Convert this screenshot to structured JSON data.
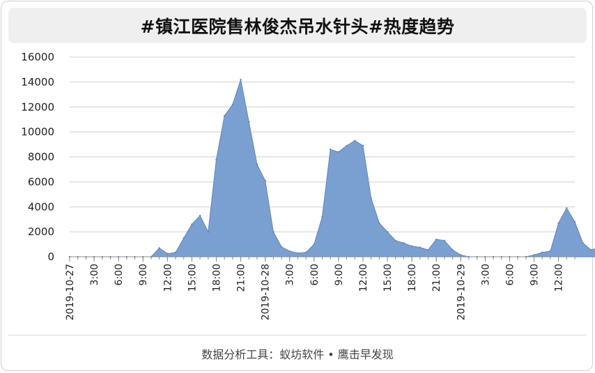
{
  "title": "#镇江医院售林俊杰吊水针头#热度趋势",
  "footer": "数据分析工具：蚁坊软件 • 鹰击早发现",
  "colors": {
    "fill": "#7aa0d2",
    "stroke": "#5f86c0",
    "grid": "#cfcfcf",
    "axis": "#888888",
    "background": "#ffffff",
    "title_bar": "#efefef"
  },
  "chart_data": {
    "type": "area",
    "title": "",
    "xlabel": "",
    "ylabel": "",
    "ylim": [
      0,
      16000
    ],
    "y_ticks": [
      0,
      2000,
      4000,
      6000,
      8000,
      10000,
      12000,
      14000,
      16000
    ],
    "grid": true,
    "legend": "none",
    "x_tick_labels": [
      {
        "hour": 0,
        "label": "2019-10-27"
      },
      {
        "hour": 3,
        "label": "3:00"
      },
      {
        "hour": 6,
        "label": "6:00"
      },
      {
        "hour": 9,
        "label": "9:00"
      },
      {
        "hour": 12,
        "label": "12:00"
      },
      {
        "hour": 15,
        "label": "15:00"
      },
      {
        "hour": 18,
        "label": "18:00"
      },
      {
        "hour": 21,
        "label": "21:00"
      },
      {
        "hour": 24,
        "label": "2019-10-28"
      },
      {
        "hour": 27,
        "label": "3:00"
      },
      {
        "hour": 30,
        "label": "6:00"
      },
      {
        "hour": 33,
        "label": "9:00"
      },
      {
        "hour": 36,
        "label": "12:00"
      },
      {
        "hour": 39,
        "label": "15:00"
      },
      {
        "hour": 42,
        "label": "18:00"
      },
      {
        "hour": 45,
        "label": "21:00"
      },
      {
        "hour": 48,
        "label": "2019-10-29"
      },
      {
        "hour": 51,
        "label": "3:00"
      },
      {
        "hour": 54,
        "label": "6:00"
      },
      {
        "hour": 57,
        "label": "9:00"
      },
      {
        "hour": 60,
        "label": "12:00"
      }
    ],
    "x_max_hour": 62,
    "series": [
      {
        "values": [
          0,
          0,
          0,
          0,
          0,
          0,
          0,
          0,
          0,
          0,
          0,
          700,
          250,
          350,
          1500,
          2600,
          3300,
          2000,
          7800,
          11300,
          12200,
          14200,
          10800,
          7400,
          6100,
          2000,
          800,
          450,
          300,
          350,
          1000,
          3200,
          8600,
          8400,
          8900,
          9300,
          8900,
          4700,
          2700,
          2000,
          1300,
          1100,
          850,
          750,
          550,
          1400,
          1300,
          550,
          150,
          0,
          0,
          0,
          0,
          0,
          0,
          0,
          0,
          150,
          350,
          450,
          2700,
          3900,
          2800,
          1100,
          550,
          750
        ]
      }
    ]
  }
}
